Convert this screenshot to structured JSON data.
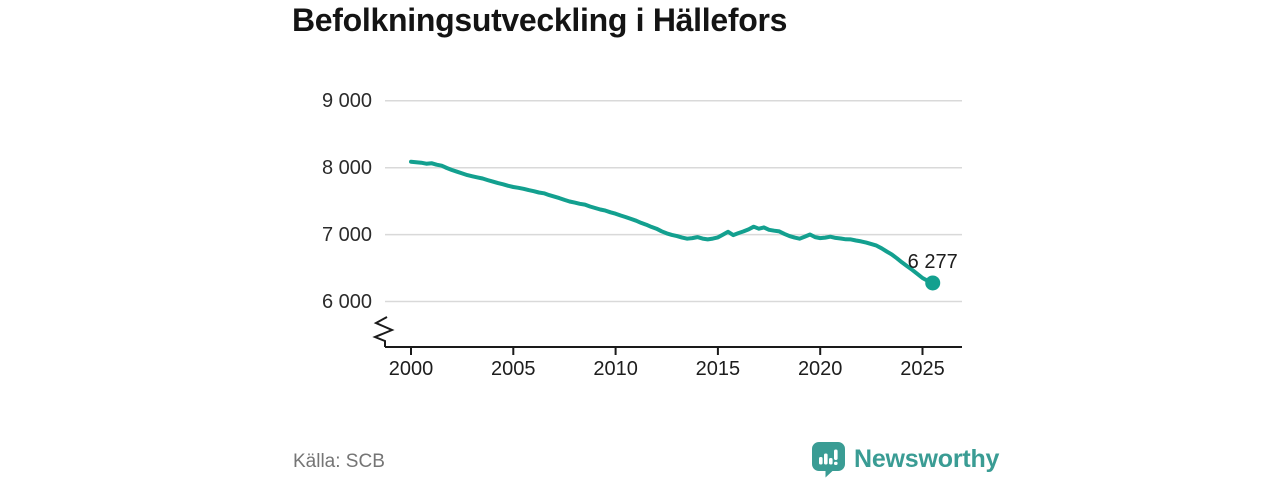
{
  "chart_data": {
    "type": "line",
    "title": "Befolkningsutveckling i Hällefors",
    "series": [
      {
        "name": "Befolkning",
        "points": [
          [
            2000.0,
            8090
          ],
          [
            2000.25,
            8082
          ],
          [
            2000.5,
            8075
          ],
          [
            2000.75,
            8060
          ],
          [
            2001.0,
            8067
          ],
          [
            2001.25,
            8045
          ],
          [
            2001.5,
            8030
          ],
          [
            2001.75,
            7995
          ],
          [
            2002.0,
            7965
          ],
          [
            2002.25,
            7940
          ],
          [
            2002.5,
            7915
          ],
          [
            2002.75,
            7890
          ],
          [
            2003.0,
            7872
          ],
          [
            2003.25,
            7855
          ],
          [
            2003.5,
            7838
          ],
          [
            2003.75,
            7815
          ],
          [
            2004.0,
            7792
          ],
          [
            2004.25,
            7770
          ],
          [
            2004.5,
            7752
          ],
          [
            2004.75,
            7730
          ],
          [
            2005.0,
            7712
          ],
          [
            2005.25,
            7700
          ],
          [
            2005.5,
            7685
          ],
          [
            2005.75,
            7665
          ],
          [
            2006.0,
            7648
          ],
          [
            2006.25,
            7630
          ],
          [
            2006.5,
            7618
          ],
          [
            2006.75,
            7590
          ],
          [
            2007.0,
            7568
          ],
          [
            2007.25,
            7545
          ],
          [
            2007.5,
            7518
          ],
          [
            2007.75,
            7495
          ],
          [
            2008.0,
            7478
          ],
          [
            2008.25,
            7460
          ],
          [
            2008.5,
            7448
          ],
          [
            2008.75,
            7420
          ],
          [
            2009.0,
            7398
          ],
          [
            2009.25,
            7375
          ],
          [
            2009.5,
            7358
          ],
          [
            2009.75,
            7333
          ],
          [
            2010.0,
            7312
          ],
          [
            2010.25,
            7285
          ],
          [
            2010.5,
            7262
          ],
          [
            2010.75,
            7235
          ],
          [
            2011.0,
            7208
          ],
          [
            2011.25,
            7175
          ],
          [
            2011.5,
            7148
          ],
          [
            2011.75,
            7115
          ],
          [
            2012.0,
            7088
          ],
          [
            2012.25,
            7050
          ],
          [
            2012.5,
            7018
          ],
          [
            2012.75,
            6995
          ],
          [
            2013.0,
            6978
          ],
          [
            2013.25,
            6955
          ],
          [
            2013.5,
            6938
          ],
          [
            2013.75,
            6948
          ],
          [
            2014.0,
            6962
          ],
          [
            2014.25,
            6940
          ],
          [
            2014.5,
            6928
          ],
          [
            2014.75,
            6940
          ],
          [
            2015.0,
            6958
          ],
          [
            2015.25,
            7000
          ],
          [
            2015.5,
            7042
          ],
          [
            2015.75,
            6992
          ],
          [
            2016.0,
            7022
          ],
          [
            2016.25,
            7048
          ],
          [
            2016.5,
            7078
          ],
          [
            2016.75,
            7118
          ],
          [
            2017.0,
            7088
          ],
          [
            2017.25,
            7108
          ],
          [
            2017.5,
            7072
          ],
          [
            2017.75,
            7058
          ],
          [
            2018.0,
            7048
          ],
          [
            2018.25,
            7010
          ],
          [
            2018.5,
            6978
          ],
          [
            2018.75,
            6955
          ],
          [
            2019.0,
            6938
          ],
          [
            2019.25,
            6970
          ],
          [
            2019.5,
            7002
          ],
          [
            2019.75,
            6962
          ],
          [
            2020.0,
            6948
          ],
          [
            2020.25,
            6955
          ],
          [
            2020.5,
            6968
          ],
          [
            2020.75,
            6950
          ],
          [
            2021.0,
            6942
          ],
          [
            2021.25,
            6930
          ],
          [
            2021.5,
            6928
          ],
          [
            2021.75,
            6912
          ],
          [
            2022.0,
            6898
          ],
          [
            2022.25,
            6880
          ],
          [
            2022.5,
            6858
          ],
          [
            2022.75,
            6835
          ],
          [
            2023.0,
            6795
          ],
          [
            2023.25,
            6748
          ],
          [
            2023.5,
            6702
          ],
          [
            2023.75,
            6645
          ],
          [
            2024.0,
            6585
          ],
          [
            2024.25,
            6528
          ],
          [
            2024.5,
            6472
          ],
          [
            2024.75,
            6412
          ],
          [
            2025.0,
            6352
          ],
          [
            2025.25,
            6310
          ],
          [
            2025.5,
            6277
          ]
        ]
      }
    ],
    "end_point": [
      2025.5,
      6277
    ],
    "end_label": "6 277",
    "x_ticks": [
      2000,
      2005,
      2010,
      2015,
      2020,
      2025
    ],
    "x_tick_labels": [
      "2000",
      "2005",
      "2010",
      "2015",
      "2020",
      "2025"
    ],
    "y_ticks": [
      9000,
      8000,
      7000,
      6000
    ],
    "y_tick_labels": [
      "9 000",
      "8 000",
      "7 000",
      "6 000"
    ],
    "y_axis_break": true,
    "grid": true,
    "legend": "none",
    "line_color": "#13a08f",
    "grid_color": "#d9d9d9",
    "axis_color": "#1a1a1a",
    "label_color": "#2b2b2b"
  },
  "footer": {
    "source": "Källa: SCB",
    "brand": "Newsworthy",
    "brand_color": "#3a9c94",
    "logo_icon": "speech-bubble-bar-chart-icon"
  }
}
